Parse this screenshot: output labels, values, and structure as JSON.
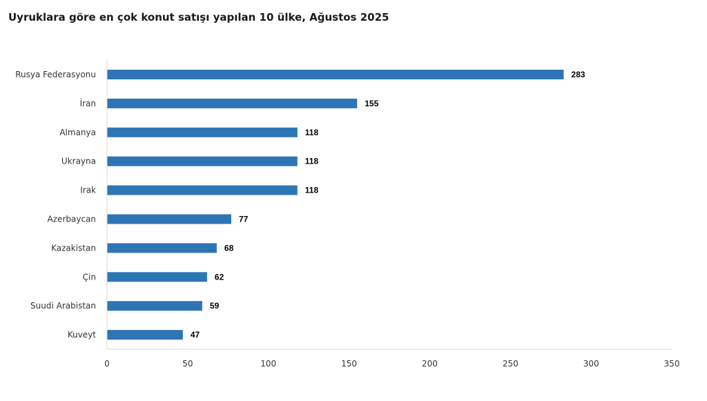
{
  "chart_data": {
    "type": "bar",
    "orientation": "horizontal",
    "title": "Uyruklara göre en çok konut satışı yapılan 10 ülke, Ağustos 2025",
    "categories": [
      "Rusya Federasyonu",
      "İran",
      "Almanya",
      "Ukrayna",
      "Irak",
      "Azerbaycan",
      "Kazakistan",
      "Çin",
      "Suudi Arabistan",
      "Kuveyt"
    ],
    "values": [
      283,
      155,
      118,
      118,
      118,
      77,
      68,
      62,
      59,
      47
    ],
    "data_labels": [
      "283",
      "155",
      "118",
      "118",
      "118",
      "77",
      "68",
      "62",
      "59",
      "47"
    ],
    "xlim": [
      0,
      350
    ],
    "x_ticks": [
      0,
      50,
      100,
      150,
      200,
      250,
      300,
      350
    ],
    "x_tick_labels": [
      "0",
      "50",
      "100",
      "150",
      "200",
      "250",
      "300",
      "350"
    ],
    "xlabel": "",
    "ylabel": "",
    "grid": false,
    "legend": "none",
    "bar_color": "#2e75b6"
  }
}
